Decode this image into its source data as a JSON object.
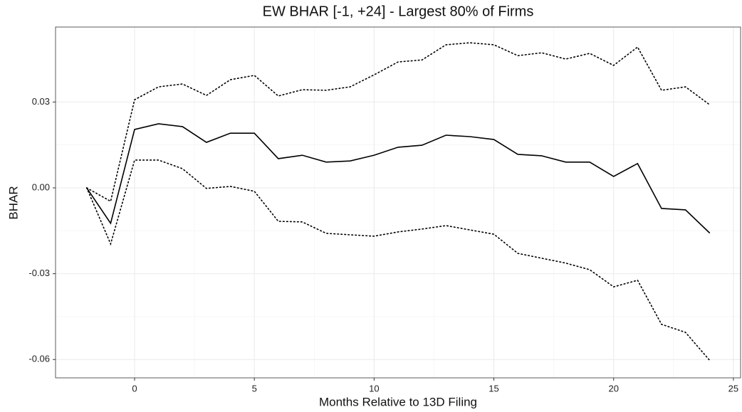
{
  "chart_data": {
    "type": "line",
    "title": "EW BHAR [-1, +24] - Largest 80% of Firms",
    "x_label": "Months Relative to 13D Filing",
    "y_label": "BHAR",
    "x": [
      -2,
      -1,
      0,
      1,
      2,
      3,
      4,
      5,
      6,
      7,
      8,
      9,
      10,
      11,
      12,
      13,
      14,
      15,
      16,
      17,
      18,
      19,
      20,
      21,
      22,
      23,
      24
    ],
    "series": [
      {
        "color": "#000000",
        "style": "solid",
        "values": [
          0,
          -0.0124,
          0.0204,
          0.0224,
          0.0214,
          0.0159,
          0.0191,
          0.0191,
          0.0102,
          0.0114,
          0.009,
          0.0094,
          0.0114,
          0.0142,
          0.0149,
          0.0184,
          0.0179,
          0.0169,
          0.0117,
          0.0112,
          0.009,
          0.009,
          0.004,
          0.0085,
          -0.0072,
          -0.0077,
          -0.0157
        ]
      },
      {
        "color": "#000000",
        "style": "dotted",
        "values": [
          0,
          -0.0047,
          0.0308,
          0.0353,
          0.0363,
          0.0323,
          0.0378,
          0.0393,
          0.0321,
          0.0343,
          0.0341,
          0.0353,
          0.0395,
          0.044,
          0.0447,
          0.05,
          0.0507,
          0.05,
          0.0462,
          0.0472,
          0.045,
          0.047,
          0.0428,
          0.0492,
          0.0341,
          0.0353,
          0.0291
        ]
      },
      {
        "color": "#000000",
        "style": "dotted",
        "values": [
          0,
          -0.0196,
          0.0097,
          0.0097,
          0.0067,
          -0.0002,
          0.0005,
          -0.0012,
          -0.0117,
          -0.0119,
          -0.0159,
          -0.0164,
          -0.0169,
          -0.0154,
          -0.0144,
          -0.0132,
          -0.0147,
          -0.0162,
          -0.0229,
          -0.0246,
          -0.0263,
          -0.0286,
          -0.0346,
          -0.0323,
          -0.0477,
          -0.0505,
          -0.0602
        ]
      }
    ],
    "xlim": [
      -3.3,
      25.3
    ],
    "xticks": [
      0,
      5,
      10,
      15,
      20,
      25
    ],
    "ylim": [
      -0.0664,
      0.0562
    ],
    "yticks": [
      0.03,
      {
        "value": 0,
        "label": "0.00"
      },
      -0.03,
      -0.06
    ],
    "grid": true,
    "minor_grid": true
  }
}
